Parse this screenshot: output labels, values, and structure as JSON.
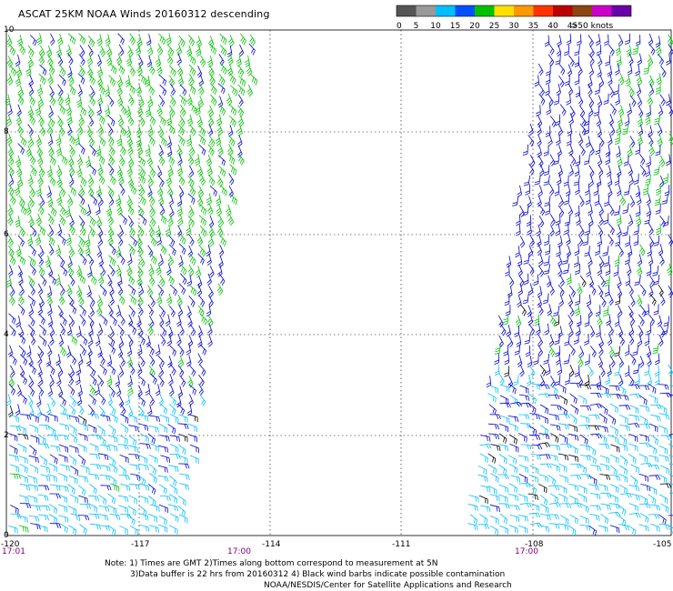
{
  "title": "ASCAT 25KM NOAA Winds 20160312 descending",
  "legend": {
    "labels": [
      "0",
      "5",
      "10",
      "15",
      "20",
      "25",
      "30",
      "35",
      "40",
      "45",
      ">50 knots"
    ],
    "colors": [
      "#555555",
      "#999999",
      "#00bfff",
      "#0050ff",
      "#00c000",
      "#ffe000",
      "#ff9900",
      "#ff3300",
      "#bb0000",
      "#8b4513",
      "#cc00cc",
      "#6a00a8"
    ]
  },
  "axes": {
    "x_labels": [
      "-120",
      "-117",
      "-114",
      "-111",
      "-108",
      "-105"
    ],
    "y_labels": [
      "10",
      "8",
      "6",
      "4",
      "2",
      "0"
    ],
    "time_labels": [
      "17:01",
      "17:00",
      "17:00"
    ]
  },
  "notes": [
    "Note: 1) Times are GMT 2)Times along bottom correspond to measurement at 5N",
    "3)Data buffer is 22 hrs from 20160312 4) Black wind barbs indicate possible contamination",
    "NOAA/NESDIS/Center for Satellite Applications and Research"
  ],
  "barb_colors": {
    "cyan": "#00bfff",
    "blue": "#0000cc",
    "green": "#00c000",
    "black": "#000000",
    "time_label": "#800080"
  }
}
